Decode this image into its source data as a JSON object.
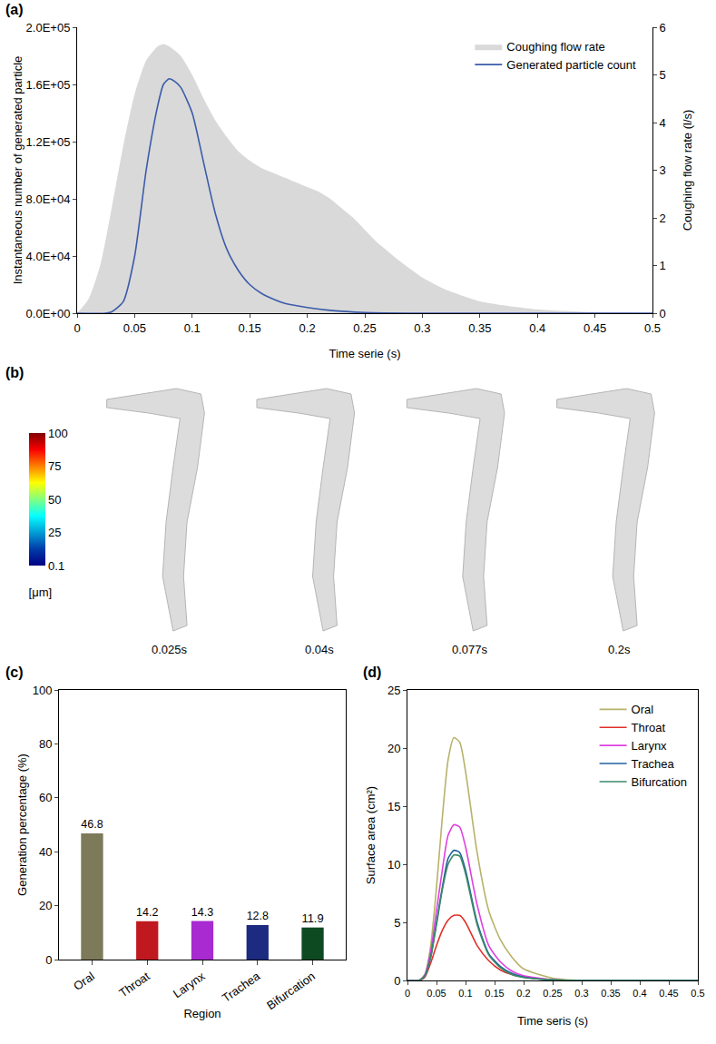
{
  "chart_data": [
    {
      "label": "(a)",
      "type": "line",
      "x_label": "Time serie (s)",
      "y_label": "Instantaneous number of generated particle",
      "y2_label": "Coughing flow rate (l/s)",
      "xlim": [
        0,
        0.5
      ],
      "xticks": [
        0,
        0.05,
        0.1,
        0.15,
        0.2,
        0.25,
        0.3,
        0.35,
        0.4,
        0.45,
        0.5
      ],
      "ylim": [
        0,
        200000
      ],
      "yticks": [
        {
          "value": 0,
          "label": "0.0E+00"
        },
        {
          "value": 40000,
          "label": "4.0E+04"
        },
        {
          "value": 80000,
          "label": "8.0E+04"
        },
        {
          "value": 120000,
          "label": "1.2E+05"
        },
        {
          "value": 160000,
          "label": "1.6E+05"
        },
        {
          "value": 200000,
          "label": "2.0E+05"
        }
      ],
      "y2lim": [
        0,
        6
      ],
      "y2ticks": [
        0,
        1,
        2,
        3,
        4,
        5,
        6
      ],
      "grid": false,
      "legend": "top right",
      "series": [
        {
          "name": "Coughing flow rate",
          "type": "area",
          "color": "#d9d9d9",
          "axis": "y2",
          "x": [
            0,
            0.01,
            0.02,
            0.03,
            0.04,
            0.05,
            0.06,
            0.07,
            0.075,
            0.08,
            0.09,
            0.1,
            0.11,
            0.12,
            0.13,
            0.14,
            0.15,
            0.16,
            0.17,
            0.18,
            0.19,
            0.2,
            0.21,
            0.22,
            0.23,
            0.24,
            0.25,
            0.26,
            0.27,
            0.28,
            0.3,
            0.32,
            0.35,
            0.4,
            0.45,
            0.5
          ],
          "values": [
            0,
            0.3,
            1.0,
            2.2,
            3.5,
            4.6,
            5.3,
            5.6,
            5.65,
            5.6,
            5.4,
            5.0,
            4.5,
            4.05,
            3.7,
            3.4,
            3.2,
            3.05,
            2.95,
            2.85,
            2.75,
            2.65,
            2.55,
            2.4,
            2.2,
            2.0,
            1.75,
            1.5,
            1.3,
            1.1,
            0.75,
            0.5,
            0.25,
            0.08,
            0.02,
            0
          ]
        },
        {
          "name": "Generated particle count",
          "type": "line",
          "color": "#3b5ba9",
          "x": [
            0,
            0.025,
            0.03,
            0.04,
            0.05,
            0.06,
            0.07,
            0.075,
            0.08,
            0.085,
            0.09,
            0.1,
            0.11,
            0.12,
            0.13,
            0.14,
            0.15,
            0.16,
            0.17,
            0.18,
            0.2,
            0.22,
            0.25,
            0.3,
            0.5
          ],
          "values": [
            0,
            0,
            1000,
            8000,
            40000,
            100000,
            145000,
            160000,
            164000,
            162000,
            158000,
            140000,
            105000,
            70000,
            45000,
            30000,
            20000,
            14000,
            10000,
            7000,
            4000,
            2000,
            500,
            0,
            0
          ]
        }
      ]
    },
    {
      "label": "(b)",
      "type": "image_sequence",
      "frames": [
        "0.025s",
        "0.04s",
        "0.077s",
        "0.2s"
      ],
      "colorbar": {
        "title": "[μm]",
        "range": [
          0.1,
          100
        ],
        "ticks": [
          0.1,
          25,
          50,
          75,
          100
        ]
      }
    },
    {
      "label": "(c)",
      "type": "bar",
      "x_label": "Region",
      "y_label": "Generation percentage (%)",
      "categories": [
        "Oral",
        "Throat",
        "Larynx",
        "Trachea",
        "Bifurcation"
      ],
      "values": [
        46.8,
        14.2,
        14.3,
        12.8,
        11.9
      ],
      "colors": [
        "#7d7a5a",
        "#c0181f",
        "#a72bd0",
        "#1c2a80",
        "#0d4a22"
      ],
      "ylim": [
        0,
        100
      ],
      "yticks": [
        0,
        20,
        40,
        60,
        80,
        100
      ],
      "data_labels": true,
      "grid": false
    },
    {
      "label": "(d)",
      "type": "line",
      "x_label": "Time seris (s)",
      "y_label": "Surface area (cm²)",
      "xlim": [
        0,
        0.5
      ],
      "xticks": [
        0,
        0.05,
        0.1,
        0.15,
        0.2,
        0.25,
        0.3,
        0.35,
        0.4,
        0.45,
        0.5
      ],
      "ylim": [
        0,
        25
      ],
      "yticks": [
        0,
        5,
        10,
        15,
        20,
        25
      ],
      "grid": false,
      "legend": "top right",
      "x": [
        0,
        0.02,
        0.03,
        0.04,
        0.05,
        0.06,
        0.07,
        0.08,
        0.09,
        0.1,
        0.12,
        0.14,
        0.16,
        0.18,
        0.2,
        0.25,
        0.3,
        0.5
      ],
      "series": [
        {
          "name": "Oral",
          "color": "#b8b26a",
          "values": [
            0,
            0,
            0.5,
            3,
            8,
            14,
            19,
            20.9,
            20.5,
            18,
            11,
            6,
            3.5,
            2,
            1,
            0.2,
            0,
            0
          ]
        },
        {
          "name": "Throat",
          "color": "#e0302a",
          "values": [
            0,
            0,
            0.3,
            1.5,
            3,
            4.3,
            5.2,
            5.6,
            5.6,
            5.0,
            3,
            1.7,
            0.9,
            0.5,
            0.3,
            0.05,
            0,
            0
          ]
        },
        {
          "name": "Larynx",
          "color": "#e040e0",
          "values": [
            0,
            0,
            0.5,
            2.5,
            6,
            9.5,
            12.5,
            13.4,
            13.2,
            11.5,
            6.5,
            3,
            1.6,
            0.8,
            0.4,
            0.05,
            0,
            0
          ]
        },
        {
          "name": "Trachea",
          "color": "#2060a0",
          "values": [
            0,
            0,
            0.4,
            2,
            5,
            8,
            10.5,
            11.2,
            11,
            9.5,
            5,
            2.3,
            1.2,
            0.6,
            0.3,
            0.05,
            0,
            0
          ]
        },
        {
          "name": "Bifurcation",
          "color": "#3a8a6a",
          "values": [
            0,
            0,
            0.4,
            2,
            4.8,
            7.8,
            10,
            10.8,
            10.7,
            9.2,
            4.8,
            2.2,
            1.1,
            0.5,
            0.25,
            0.05,
            0,
            0
          ]
        }
      ]
    }
  ]
}
